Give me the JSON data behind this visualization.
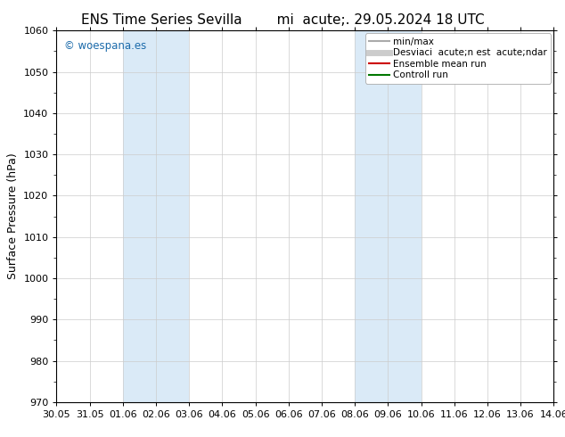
{
  "title_left": "ENS Time Series Sevilla",
  "title_right": "mi  acute;. 29.05.2024 18 UTC",
  "ylabel": "Surface Pressure (hPa)",
  "ylim": [
    970,
    1060
  ],
  "yticks": [
    970,
    980,
    990,
    1000,
    1010,
    1020,
    1030,
    1040,
    1050,
    1060
  ],
  "x_tick_labels": [
    "30.05",
    "31.05",
    "01.06",
    "02.06",
    "03.06",
    "04.06",
    "05.06",
    "06.06",
    "07.06",
    "08.06",
    "09.06",
    "10.06",
    "11.06",
    "12.06",
    "13.06",
    "14.06"
  ],
  "shaded_bands": [
    {
      "xstart": 2.0,
      "xend": 4.0
    },
    {
      "xstart": 9.0,
      "xend": 11.0
    }
  ],
  "shaded_color": "#daeaf7",
  "background_color": "#ffffff",
  "grid_color": "#cccccc",
  "watermark": "© woespana.es",
  "watermark_color": "#1a6aaa",
  "legend_items": [
    {
      "label": "min/max",
      "color": "#aaaaaa",
      "lw": 1.5
    },
    {
      "label": "Desviaci  acute;n est  acute;ndar",
      "color": "#cccccc",
      "lw": 5
    },
    {
      "label": "Ensemble mean run",
      "color": "#cc0000",
      "lw": 1.5
    },
    {
      "label": "Controll run",
      "color": "#007700",
      "lw": 1.5
    }
  ],
  "figsize": [
    6.34,
    4.9
  ],
  "dpi": 100,
  "font_family": "DejaVu Sans",
  "title_fontsize": 11,
  "label_fontsize": 9,
  "tick_fontsize": 8,
  "legend_fontsize": 7.5,
  "watermark_fontsize": 8.5
}
